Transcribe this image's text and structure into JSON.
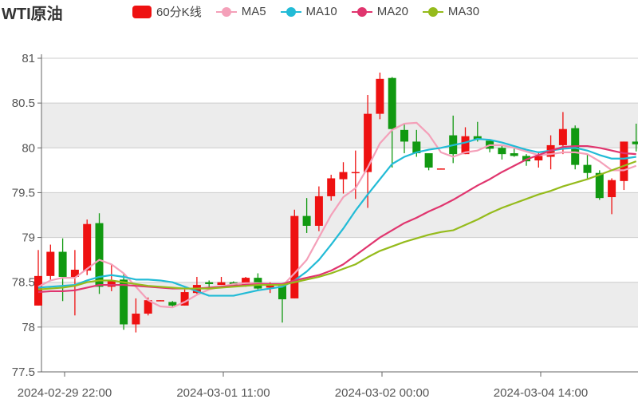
{
  "title": "WTI原油",
  "colors": {
    "up": "#ee1111",
    "down": "#119911",
    "MA5": "#f4a0b9",
    "MA10": "#22bbd6",
    "MA20": "#e0356e",
    "MA30": "#95bb1c",
    "band": "#ececec",
    "grid": "#cccccc"
  },
  "legend": [
    {
      "label": "60分K线",
      "type": "box",
      "color": "#ee1111"
    },
    {
      "label": "MA5",
      "type": "line",
      "color": "#f4a0b9"
    },
    {
      "label": "MA10",
      "type": "line",
      "color": "#22bbd6"
    },
    {
      "label": "MA20",
      "type": "line",
      "color": "#e0356e"
    },
    {
      "label": "MA30",
      "type": "line",
      "color": "#95bb1c"
    }
  ],
  "chart_data": {
    "type": "candlestick",
    "title": "WTI原油",
    "ylim": [
      77.5,
      81
    ],
    "yticks": [
      "77.5",
      "78",
      "78.5",
      "79",
      "79.5",
      "80",
      "80.5",
      "81"
    ],
    "xtick_labels": [
      "2024-02-29 22:00",
      "2024-03-01 11:00",
      "2024-03-02 00:00",
      "2024-03-04 14:00"
    ],
    "grid": "horizontal, alternating bands",
    "legend_position": "top",
    "candles_ohlc": [
      [
        78.24,
        78.86,
        78.24,
        78.57
      ],
      [
        78.57,
        78.92,
        78.52,
        78.84
      ],
      [
        78.84,
        78.99,
        78.29,
        78.56
      ],
      [
        78.56,
        78.86,
        78.13,
        78.64
      ],
      [
        78.63,
        79.2,
        78.58,
        79.15
      ],
      [
        79.16,
        79.27,
        78.37,
        78.45
      ],
      [
        78.45,
        78.7,
        78.4,
        78.52
      ],
      [
        78.53,
        78.6,
        77.97,
        78.03
      ],
      [
        78.03,
        78.32,
        77.94,
        78.15
      ],
      [
        78.15,
        78.33,
        78.13,
        78.3
      ],
      [
        78.29,
        78.3,
        78.29,
        78.3
      ],
      [
        78.28,
        78.29,
        78.22,
        78.24
      ],
      [
        78.24,
        78.42,
        78.24,
        78.39
      ],
      [
        78.38,
        78.56,
        78.37,
        78.47
      ],
      [
        78.5,
        78.52,
        78.43,
        78.48
      ],
      [
        78.47,
        78.56,
        78.47,
        78.5
      ],
      [
        78.5,
        78.51,
        78.47,
        78.47
      ],
      [
        78.46,
        78.56,
        78.45,
        78.55
      ],
      [
        78.55,
        78.6,
        78.42,
        78.43
      ],
      [
        78.44,
        78.5,
        78.38,
        78.47
      ],
      [
        78.46,
        78.49,
        78.05,
        78.31
      ],
      [
        78.32,
        79.31,
        78.32,
        79.24
      ],
      [
        79.24,
        79.44,
        79.05,
        79.13
      ],
      [
        79.13,
        79.57,
        79.07,
        79.46
      ],
      [
        79.46,
        79.7,
        79.41,
        79.66
      ],
      [
        79.65,
        79.84,
        79.49,
        79.73
      ],
      [
        79.72,
        79.97,
        79.43,
        79.73
      ],
      [
        79.73,
        80.59,
        79.33,
        80.38
      ],
      [
        80.38,
        80.84,
        80.32,
        80.77
      ],
      [
        80.78,
        80.79,
        79.78,
        80.21
      ],
      [
        80.2,
        80.27,
        79.94,
        80.07
      ],
      [
        80.07,
        80.2,
        79.9,
        79.94
      ],
      [
        79.94,
        79.94,
        79.75,
        79.78
      ],
      [
        79.76,
        79.77,
        79.76,
        79.77
      ],
      [
        80.14,
        80.36,
        79.83,
        79.93
      ],
      [
        79.93,
        80.23,
        79.93,
        80.13
      ],
      [
        80.13,
        80.29,
        80.07,
        80.09
      ],
      [
        80.08,
        80.08,
        79.95,
        79.99
      ],
      [
        80.0,
        80.02,
        79.87,
        79.93
      ],
      [
        79.94,
        79.99,
        79.9,
        79.91
      ],
      [
        79.91,
        79.93,
        79.8,
        79.85
      ],
      [
        79.86,
        79.96,
        79.78,
        79.91
      ],
      [
        79.9,
        80.14,
        79.76,
        80.03
      ],
      [
        80.03,
        80.4,
        79.93,
        80.21
      ],
      [
        80.22,
        80.25,
        79.76,
        79.81
      ],
      [
        79.81,
        79.93,
        79.66,
        79.72
      ],
      [
        79.72,
        79.75,
        79.42,
        79.44
      ],
      [
        79.45,
        79.66,
        79.26,
        79.64
      ],
      [
        79.63,
        80.07,
        79.53,
        80.07
      ],
      [
        80.07,
        80.27,
        79.96,
        80.04
      ]
    ],
    "ohlc_order": [
      "open",
      "high",
      "low",
      "close"
    ],
    "series": [
      {
        "name": "MA5",
        "values": [
          78.45,
          78.52,
          78.55,
          78.55,
          78.65,
          78.75,
          78.7,
          78.6,
          78.45,
          78.3,
          78.23,
          78.22,
          78.28,
          78.36,
          78.42,
          78.45,
          78.48,
          78.49,
          78.49,
          78.48,
          78.46,
          78.6,
          78.75,
          79.0,
          79.25,
          79.45,
          79.55,
          79.78,
          80.05,
          80.2,
          80.27,
          80.28,
          80.15,
          79.95,
          79.9,
          79.95,
          79.97,
          80.03,
          80.03,
          80.0,
          79.96,
          79.92,
          79.93,
          79.95,
          79.95,
          79.93,
          79.85,
          79.75,
          79.75,
          79.8
        ]
      },
      {
        "name": "MA10",
        "values": [
          78.44,
          78.45,
          78.46,
          78.47,
          78.52,
          78.56,
          78.58,
          78.56,
          78.53,
          78.53,
          78.52,
          78.5,
          78.45,
          78.4,
          78.35,
          78.35,
          78.35,
          78.38,
          78.41,
          78.43,
          78.45,
          78.52,
          78.62,
          78.75,
          78.92,
          79.1,
          79.3,
          79.48,
          79.65,
          79.82,
          79.9,
          79.95,
          79.98,
          80.0,
          80.03,
          80.06,
          80.1,
          80.09,
          80.06,
          80.02,
          79.98,
          79.95,
          79.97,
          79.99,
          80.0,
          79.97,
          79.92,
          79.88,
          79.88,
          79.9
        ]
      },
      {
        "name": "MA20",
        "values": [
          78.39,
          78.4,
          78.4,
          78.41,
          78.44,
          78.47,
          78.47,
          78.47,
          78.46,
          78.45,
          78.44,
          78.43,
          78.43,
          78.43,
          78.44,
          78.45,
          78.46,
          78.47,
          78.48,
          78.48,
          78.48,
          78.52,
          78.55,
          78.58,
          78.63,
          78.7,
          78.8,
          78.9,
          79.0,
          79.08,
          79.16,
          79.22,
          79.29,
          79.35,
          79.42,
          79.5,
          79.58,
          79.65,
          79.73,
          79.8,
          79.87,
          79.92,
          79.97,
          80.01,
          80.02,
          80.02,
          80.0,
          79.97,
          79.94,
          79.93
        ]
      },
      {
        "name": "MA30",
        "values": [
          78.42,
          78.43,
          78.44,
          78.46,
          78.5,
          78.52,
          78.52,
          78.5,
          78.48,
          78.46,
          78.45,
          78.44,
          78.43,
          78.43,
          78.43,
          78.44,
          78.45,
          78.46,
          78.47,
          78.47,
          78.47,
          78.5,
          78.53,
          78.56,
          78.6,
          78.65,
          78.7,
          78.78,
          78.85,
          78.9,
          78.95,
          78.99,
          79.03,
          79.06,
          79.08,
          79.14,
          79.2,
          79.27,
          79.33,
          79.38,
          79.43,
          79.48,
          79.52,
          79.57,
          79.61,
          79.65,
          79.7,
          79.75,
          79.8,
          79.85
        ]
      }
    ]
  }
}
